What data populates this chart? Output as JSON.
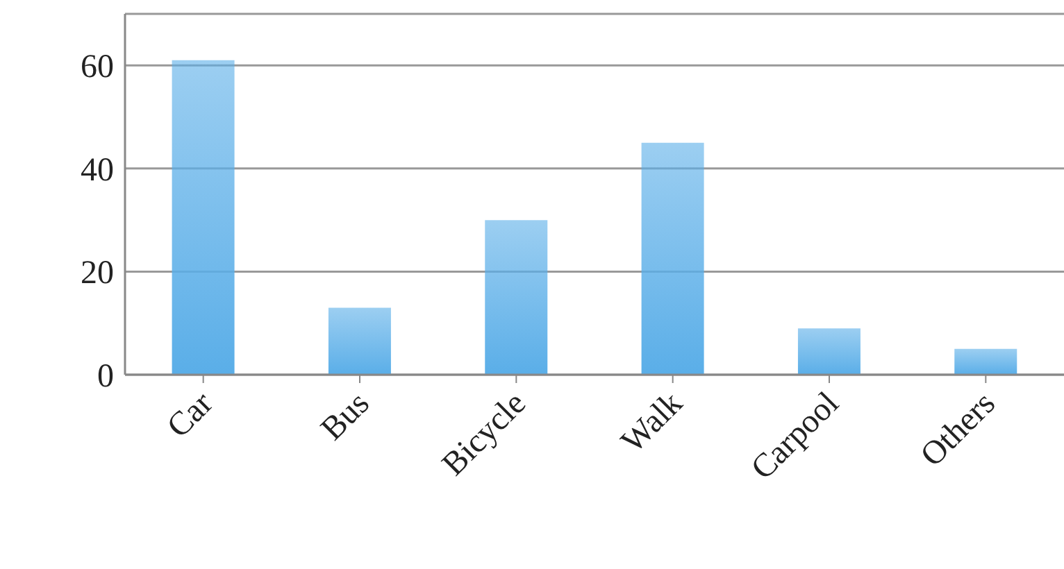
{
  "chart_data": {
    "type": "bar",
    "categories": [
      "Car",
      "Bus",
      "Bicycle",
      "Walk",
      "Carpool",
      "Others"
    ],
    "values": [
      61,
      13,
      30,
      45,
      9,
      5
    ],
    "color": "#5aaee8",
    "ylim": [
      0,
      70
    ],
    "yticks": [
      0,
      20,
      40,
      60
    ],
    "grid": "y"
  }
}
